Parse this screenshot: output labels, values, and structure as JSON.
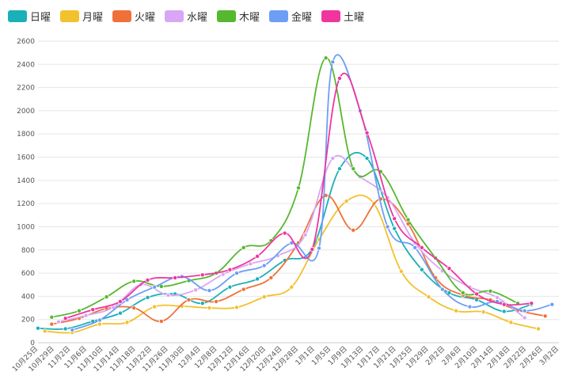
{
  "chart_data": {
    "type": "line",
    "title": "",
    "xlabel": "",
    "ylabel": "",
    "ylim": [
      0,
      2600
    ],
    "yticks": [
      0,
      200,
      400,
      600,
      800,
      1000,
      1200,
      1400,
      1600,
      1800,
      2000,
      2200,
      2400,
      2600
    ],
    "grid": true,
    "legend_position": "top-left",
    "tick_labels": [
      "10月25日",
      "10月29日",
      "11月2日",
      "11月6日",
      "11月10日",
      "11月14日",
      "11月18日",
      "11月22日",
      "11月26日",
      "11月30日",
      "12月4日",
      "12月8日",
      "12月12日",
      "12月16日",
      "12月20日",
      "12月24日",
      "12月28日",
      "1月1日",
      "1月5日",
      "1月9日",
      "1月13日",
      "1月17日",
      "1月21日",
      "1月25日",
      "1月29日",
      "2月2日",
      "2月6日",
      "2月10日",
      "2月14日",
      "2月18日",
      "2月22日",
      "2月26日",
      "3月2日"
    ],
    "series": [
      {
        "name": "日曜",
        "color": "#1ab0b8",
        "points": [
          [
            0,
            125
          ],
          [
            4,
            120
          ],
          [
            8,
            185
          ],
          [
            12,
            255
          ],
          [
            16,
            390
          ],
          [
            20,
            420
          ],
          [
            24,
            340
          ],
          [
            28,
            480
          ],
          [
            32,
            550
          ],
          [
            36,
            710
          ],
          [
            40,
            810
          ],
          [
            44,
            1500
          ],
          [
            48,
            1590
          ],
          [
            52,
            985
          ],
          [
            56,
            630
          ],
          [
            60,
            430
          ],
          [
            64,
            370
          ],
          [
            68,
            270
          ],
          [
            72,
            330
          ]
        ]
      },
      {
        "name": "月曜",
        "color": "#f2c12e",
        "points": [
          [
            1,
            100
          ],
          [
            5,
            88
          ],
          [
            9,
            160
          ],
          [
            13,
            175
          ],
          [
            17,
            310
          ],
          [
            21,
            315
          ],
          [
            25,
            300
          ],
          [
            29,
            305
          ],
          [
            33,
            395
          ],
          [
            37,
            480
          ],
          [
            41,
            890
          ],
          [
            45,
            1220
          ],
          [
            49,
            1200
          ],
          [
            53,
            615
          ],
          [
            57,
            395
          ],
          [
            61,
            275
          ],
          [
            65,
            265
          ],
          [
            69,
            175
          ],
          [
            73,
            120
          ]
        ]
      },
      {
        "name": "火曜",
        "color": "#f0703a",
        "points": [
          [
            2,
            160
          ],
          [
            6,
            210
          ],
          [
            10,
            295
          ],
          [
            14,
            300
          ],
          [
            18,
            185
          ],
          [
            22,
            370
          ],
          [
            26,
            355
          ],
          [
            30,
            460
          ],
          [
            34,
            560
          ],
          [
            38,
            860
          ],
          [
            42,
            1270
          ],
          [
            46,
            970
          ],
          [
            50,
            1240
          ],
          [
            54,
            1025
          ],
          [
            58,
            560
          ],
          [
            62,
            410
          ],
          [
            66,
            370
          ],
          [
            70,
            280
          ],
          [
            74,
            230
          ]
        ]
      },
      {
        "name": "水曜",
        "color": "#d9a6f5",
        "points": [
          [
            3,
            180
          ],
          [
            7,
            235
          ],
          [
            11,
            305
          ],
          [
            15,
            500
          ],
          [
            19,
            410
          ],
          [
            23,
            455
          ],
          [
            27,
            590
          ],
          [
            31,
            680
          ],
          [
            35,
            750
          ],
          [
            39,
            930
          ],
          [
            43,
            1590
          ],
          [
            47,
            1430
          ],
          [
            51,
            1250
          ],
          [
            55,
            860
          ],
          [
            59,
            620
          ],
          [
            63,
            480
          ],
          [
            67,
            390
          ],
          [
            71,
            215
          ]
        ]
      },
      {
        "name": "木曜",
        "color": "#55b82f",
        "points": [
          [
            2,
            220
          ],
          [
            6,
            275
          ],
          [
            10,
            395
          ],
          [
            14,
            530
          ],
          [
            18,
            485
          ],
          [
            22,
            535
          ],
          [
            26,
            600
          ],
          [
            30,
            820
          ],
          [
            34,
            880
          ],
          [
            38,
            1335
          ],
          [
            42,
            2455
          ],
          [
            46,
            1500
          ],
          [
            50,
            1475
          ],
          [
            54,
            1060
          ],
          [
            58,
            730
          ],
          [
            62,
            430
          ],
          [
            66,
            445
          ],
          [
            70,
            340
          ]
        ]
      },
      {
        "name": "金曜",
        "color": "#6d9ef5",
        "points": [
          [
            5,
            110
          ],
          [
            9,
            195
          ],
          [
            13,
            370
          ],
          [
            17,
            480
          ],
          [
            21,
            570
          ],
          [
            25,
            450
          ],
          [
            29,
            600
          ],
          [
            33,
            665
          ],
          [
            37,
            860
          ],
          [
            41,
            815
          ],
          [
            43,
            2420
          ],
          [
            47,
            2000
          ],
          [
            51,
            1000
          ],
          [
            55,
            820
          ],
          [
            59,
            460
          ],
          [
            63,
            310
          ],
          [
            67,
            355
          ],
          [
            71,
            275
          ],
          [
            75,
            330
          ]
        ]
      },
      {
        "name": "土曜",
        "color": "#f0359e",
        "points": [
          [
            4,
            210
          ],
          [
            8,
            285
          ],
          [
            12,
            355
          ],
          [
            16,
            540
          ],
          [
            20,
            560
          ],
          [
            24,
            585
          ],
          [
            28,
            630
          ],
          [
            32,
            745
          ],
          [
            36,
            945
          ],
          [
            40,
            805
          ],
          [
            44,
            2280
          ],
          [
            48,
            1810
          ],
          [
            52,
            1070
          ],
          [
            56,
            820
          ],
          [
            60,
            640
          ],
          [
            64,
            420
          ],
          [
            68,
            330
          ],
          [
            72,
            340
          ]
        ]
      }
    ]
  }
}
